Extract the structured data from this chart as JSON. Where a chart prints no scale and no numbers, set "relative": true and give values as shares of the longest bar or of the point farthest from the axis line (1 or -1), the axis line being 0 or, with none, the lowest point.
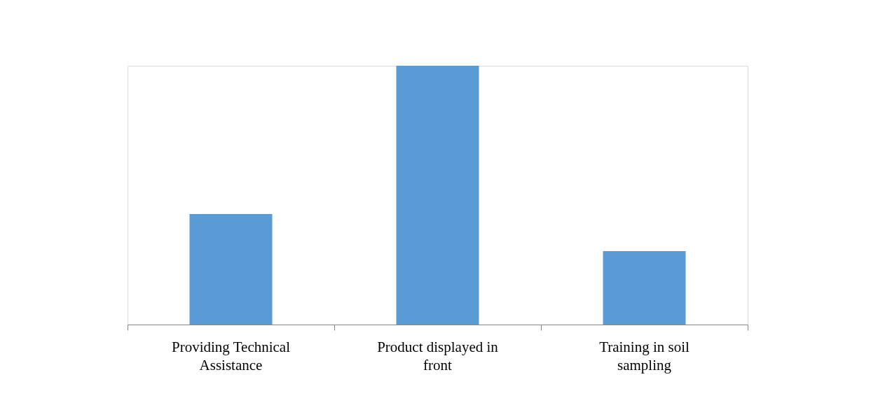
{
  "chart_data": {
    "type": "bar",
    "relative": true,
    "color": "#5b9bd5",
    "categories": [
      "Providing Technical Assistance",
      "Product displayed in front",
      "Training in soil sampling"
    ],
    "values": [
      0.427,
      1,
      0.284
    ]
  }
}
